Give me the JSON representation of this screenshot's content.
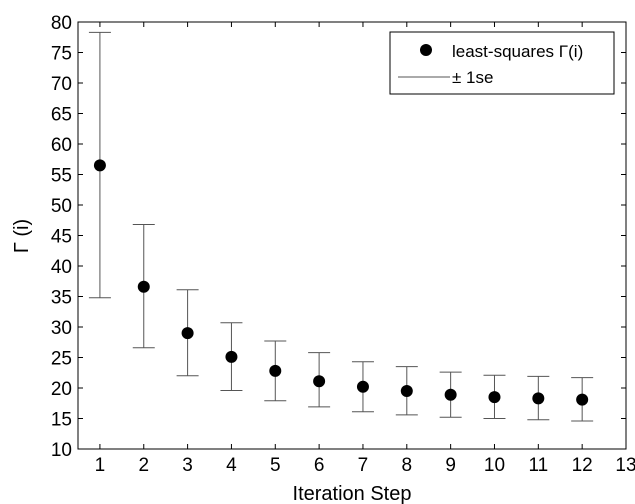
{
  "chart_data": {
    "type": "scatter",
    "xlabel": "Iteration Step",
    "ylabel": "Γ (i)",
    "xlim": [
      0.5,
      13
    ],
    "ylim": [
      10,
      80
    ],
    "xticks": [
      1,
      2,
      3,
      4,
      5,
      6,
      7,
      8,
      9,
      10,
      11,
      12,
      13
    ],
    "yticks": [
      10,
      15,
      20,
      25,
      30,
      35,
      40,
      45,
      50,
      55,
      60,
      65,
      70,
      75,
      80
    ],
    "grid": false,
    "legend_position": "top-right",
    "series": [
      {
        "name": "least-squares Γ(i)",
        "marker": "filled-circle",
        "color": "#000000",
        "x": [
          1,
          2,
          3,
          4,
          5,
          6,
          7,
          8,
          9,
          10,
          11,
          12
        ],
        "y": [
          56.5,
          36.6,
          29.0,
          25.1,
          22.8,
          21.1,
          20.2,
          19.5,
          18.9,
          18.5,
          18.3,
          18.1
        ]
      },
      {
        "name": "± 1se",
        "marker": "errorbar",
        "color": "#555555",
        "x": [
          1,
          2,
          3,
          4,
          5,
          6,
          7,
          8,
          9,
          10,
          11,
          12
        ],
        "lower": [
          34.8,
          26.6,
          22.0,
          19.6,
          17.9,
          16.9,
          16.1,
          15.6,
          15.2,
          15.0,
          14.8,
          14.6
        ],
        "upper": [
          78.3,
          46.8,
          36.1,
          30.7,
          27.7,
          25.8,
          24.3,
          23.5,
          22.6,
          22.1,
          21.9,
          21.7
        ]
      }
    ]
  }
}
